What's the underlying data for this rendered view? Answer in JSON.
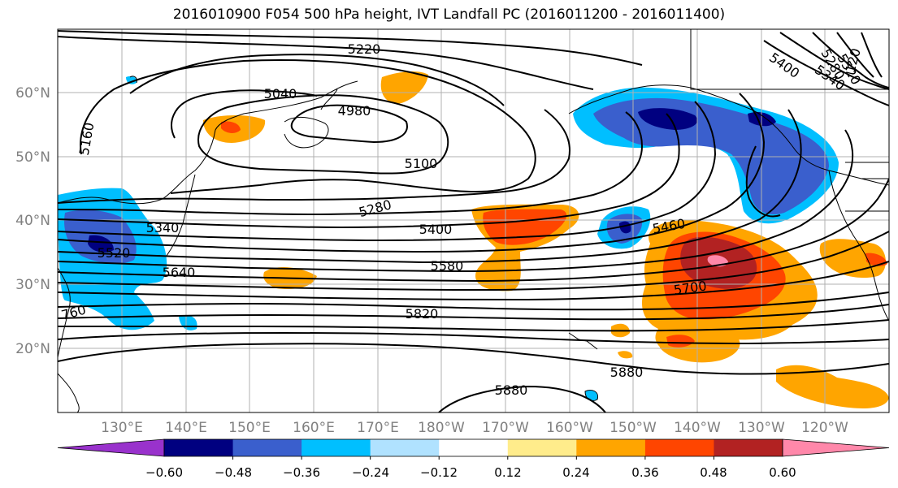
{
  "title": "2016010900 F054 500 hPa height, IVT Landfall PC (2016011200 - 2016011400)",
  "lat_labels": [
    "60°N",
    "50°N",
    "40°N",
    "30°N",
    "20°N"
  ],
  "lon_labels": [
    "130°E",
    "140°E",
    "150°E",
    "160°E",
    "170°E",
    "180°W",
    "170°W",
    "160°W",
    "150°W",
    "140°W",
    "130°W",
    "120°W"
  ],
  "contour_labels": [
    "5220",
    "5040",
    "4980",
    "5160",
    "5100",
    "5280",
    "5400",
    "5340",
    "5520",
    "5640",
    "5580",
    "5460",
    "5700",
    "760",
    "5820",
    "5880",
    "5880",
    "5400",
    "5340",
    "5280",
    "5520",
    "120"
  ],
  "colorbar": {
    "tick_labels": [
      "−0.60",
      "−0.48",
      "−0.36",
      "−0.24",
      "−0.12",
      "0.12",
      "0.24",
      "0.36",
      "0.48",
      "0.60"
    ],
    "colors": [
      "#9932cc",
      "#000080",
      "#3a5fcd",
      "#00bfff",
      "#b0e2ff",
      "#ffffff",
      "#ffec8b",
      "#ffa500",
      "#ff4500",
      "#b22222",
      "#ff88aa"
    ]
  },
  "map_style": {
    "grid": true,
    "projection": "cylindrical",
    "contour_color": "#000000"
  }
}
